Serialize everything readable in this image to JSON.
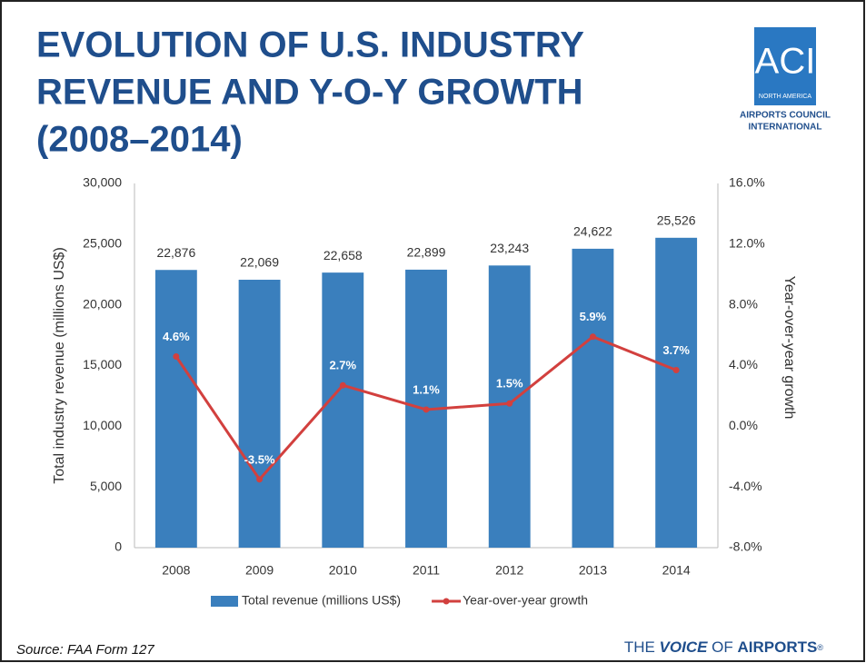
{
  "title": [
    "EVOLUTION OF U.S. INDUSTRY",
    "REVENUE AND Y-O-Y GROWTH",
    "(2008–2014)"
  ],
  "logo": {
    "mark": "ACI",
    "region": "NORTH AMERICA",
    "lines": [
      "AIRPORTS COUNCIL",
      "INTERNATIONAL"
    ]
  },
  "source": "Source: FAA Form 127",
  "brand": [
    "THE ",
    "VOICE",
    " OF ",
    "AIRPORTS",
    "®"
  ],
  "chart_data": {
    "type": "bar",
    "categories": [
      "2008",
      "2009",
      "2010",
      "2011",
      "2012",
      "2013",
      "2014"
    ],
    "series": [
      {
        "name": "Total revenue (millions US$)",
        "type": "bar",
        "color": "#3a7fbd",
        "values": [
          22876,
          22069,
          22658,
          22899,
          23243,
          24622,
          25526
        ],
        "value_labels": [
          "22,876",
          "22,069",
          "22,658",
          "22,899",
          "23,243",
          "24,622",
          "25,526"
        ]
      },
      {
        "name": "Year-over-year growth",
        "type": "line",
        "axis": "y2",
        "color": "#d2403e",
        "values": [
          4.6,
          -3.5,
          2.7,
          1.1,
          1.5,
          5.9,
          3.7
        ],
        "value_labels": [
          "4.6%",
          "-3.5%",
          "2.7%",
          "1.1%",
          "1.5%",
          "5.9%",
          "3.7%"
        ]
      }
    ],
    "ylabel": "Total industry revenue (millions US$)",
    "y2label": "Year-over-year growth",
    "ylim": [
      0,
      30000
    ],
    "yticks": [
      0,
      {
        "value": 5000,
        "label": "5,000"
      },
      {
        "value": 10000,
        "label": "10,000"
      },
      {
        "value": 15000,
        "label": "15,000"
      },
      {
        "value": 20000,
        "label": "20,000"
      },
      {
        "value": 25000,
        "label": "25,000"
      },
      {
        "value": 30000,
        "label": "30,000"
      }
    ],
    "y2lim": [
      -8,
      16
    ],
    "y2ticks": [
      {
        "value": -8,
        "label": "-8.0%"
      },
      {
        "value": -4,
        "label": "-4.0%"
      },
      {
        "value": 0,
        "label": "0.0%"
      },
      {
        "value": 4,
        "label": "4.0%"
      },
      {
        "value": 8,
        "label": "8.0%"
      },
      {
        "value": 12,
        "label": "12.0%"
      },
      {
        "value": 16,
        "label": "16.0%"
      }
    ],
    "grid": false,
    "legend": "bottom"
  }
}
